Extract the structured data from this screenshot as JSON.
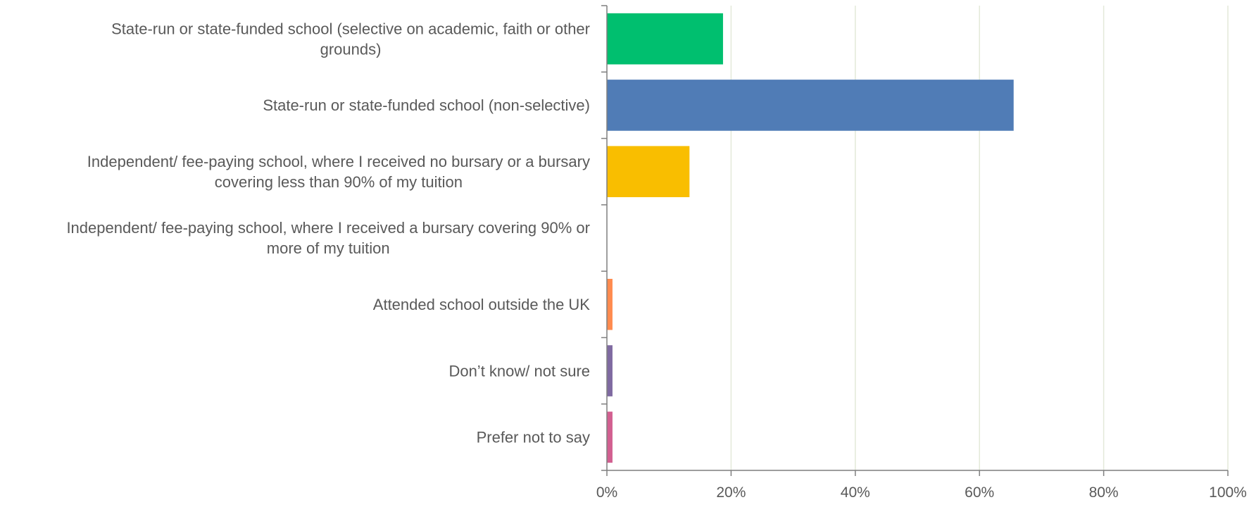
{
  "chart_data": {
    "type": "bar",
    "orientation": "horizontal",
    "categories": [
      [
        "State-run or state-funded school (selective on academic, faith or other",
        "grounds)"
      ],
      [
        "State-run or state-funded school (non-selective)"
      ],
      [
        "Independent/ fee-paying school, where I received no bursary or a bursary",
        "covering less than 90% of my tuition"
      ],
      [
        "Independent/ fee-paying school, where I received a bursary covering 90% or",
        "more of my tuition"
      ],
      [
        "Attended school outside the UK"
      ],
      [
        "Don’t know/ not sure"
      ],
      [
        "Prefer not to say"
      ]
    ],
    "values": [
      18.7,
      65.5,
      13.3,
      0,
      0.9,
      0.9,
      0.9
    ],
    "colors": [
      "#00bf6f",
      "#507cb6",
      "#f9be00",
      "#6bc8cd",
      "#ff8b4f",
      "#7f6aa1",
      "#d25f90"
    ],
    "xlim": [
      0,
      100
    ],
    "x_ticks": [
      0,
      20,
      40,
      60,
      80,
      100
    ],
    "x_tick_labels": [
      "0%",
      "20%",
      "40%",
      "60%",
      "80%",
      "100%"
    ],
    "grid": "vertical",
    "legend": "none",
    "title": "",
    "xlabel": "",
    "ylabel": ""
  },
  "colors": {
    "axis": "#7f7f7f",
    "grid": "#e3e9d9",
    "text": "#595959"
  }
}
